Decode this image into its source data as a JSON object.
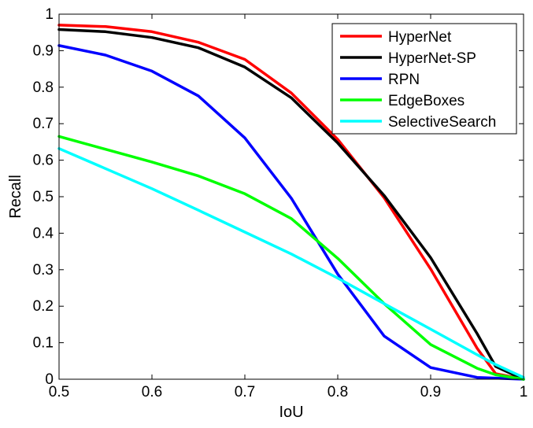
{
  "chart_data": {
    "type": "line",
    "xlabel": "IoU",
    "ylabel": "Recall",
    "xlim": [
      0.5,
      1
    ],
    "ylim": [
      0,
      1
    ],
    "xticks": [
      "0.5",
      "0.6",
      "0.7",
      "0.8",
      "0.9",
      "1"
    ],
    "yticks": [
      "0",
      "0.1",
      "0.2",
      "0.3",
      "0.4",
      "0.5",
      "0.6",
      "0.7",
      "0.8",
      "0.9",
      "1"
    ],
    "grid": false,
    "legend_position": "top-right",
    "x": [
      0.5,
      0.55,
      0.6,
      0.65,
      0.7,
      0.75,
      0.8,
      0.85,
      0.9,
      0.95,
      0.97,
      1.0
    ],
    "series": [
      {
        "name": "HyperNet",
        "color": "#ff0000",
        "values": [
          0.97,
          0.966,
          0.952,
          0.923,
          0.876,
          0.784,
          0.657,
          0.497,
          0.302,
          0.085,
          0.015,
          0.0
        ]
      },
      {
        "name": "HyperNet-SP",
        "color": "#000000",
        "values": [
          0.958,
          0.952,
          0.936,
          0.908,
          0.855,
          0.771,
          0.647,
          0.503,
          0.333,
          0.125,
          0.035,
          0.0
        ]
      },
      {
        "name": "RPN",
        "color": "#0000ff",
        "values": [
          0.914,
          0.888,
          0.844,
          0.776,
          0.661,
          0.496,
          0.288,
          0.118,
          0.032,
          0.005,
          0.003,
          0.0
        ]
      },
      {
        "name": "EdgeBoxes",
        "color": "#00ff00",
        "values": [
          0.665,
          0.63,
          0.595,
          0.557,
          0.508,
          0.44,
          0.331,
          0.207,
          0.095,
          0.03,
          0.012,
          0.0
        ]
      },
      {
        "name": "SelectiveSearch",
        "color": "#00ffff",
        "values": [
          0.632,
          0.577,
          0.522,
          0.463,
          0.403,
          0.343,
          0.277,
          0.207,
          0.137,
          0.067,
          0.04,
          0.005
        ]
      }
    ]
  }
}
